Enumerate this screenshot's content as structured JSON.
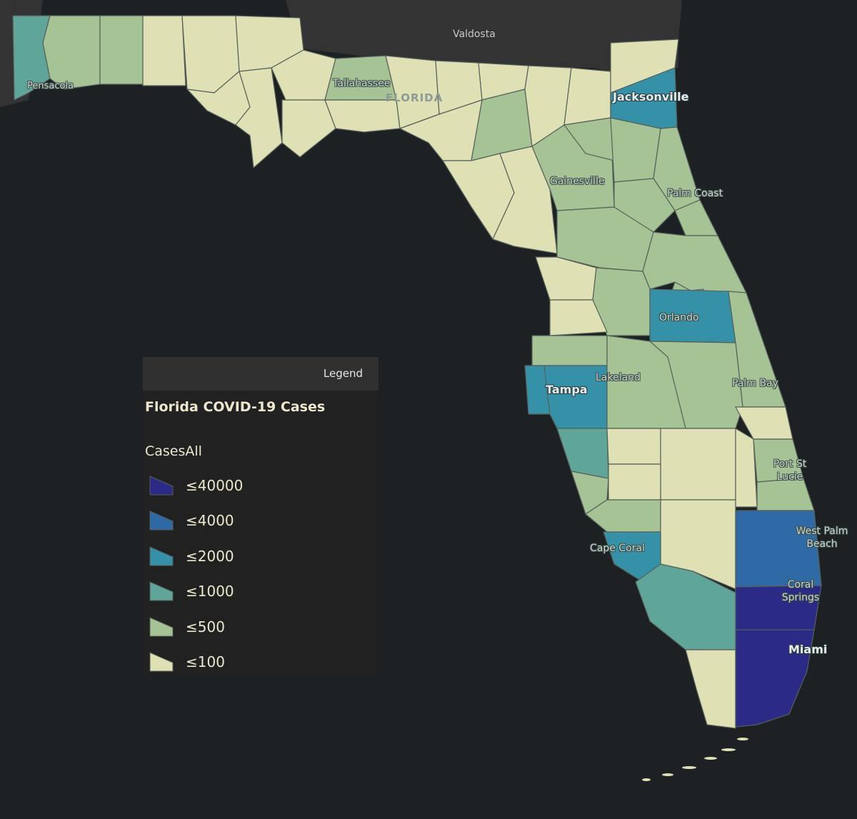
{
  "places": {
    "valdosta": "Valdosta",
    "pensacola": "Pensacola",
    "tallahassee": "Tallahassee",
    "florida": "FLORIDA",
    "jacksonville": "Jacksonville",
    "gainesville": "Gainesville",
    "palm_coast": "Palm Coast",
    "orlando": "Orlando",
    "lakeland": "Lakeland",
    "tampa": "Tampa",
    "palm_bay": "Palm Bay",
    "port_st_lucie_1": "Port St",
    "port_st_lucie_2": "Lucie",
    "west_palm_beach_1": "West Palm",
    "west_palm_beach_2": "Beach",
    "coral_springs_1": "Coral",
    "coral_springs_2": "Springs",
    "cape_coral": "Cape Coral",
    "miami": "Miami"
  },
  "legend": {
    "header": "Legend",
    "layer_title": "Florida COVID-19 Cases",
    "field": "CasesAll",
    "classes": [
      {
        "label": "≤40000",
        "color": "#2b2a87"
      },
      {
        "label": "≤4000",
        "color": "#2f6aa6"
      },
      {
        "label": "≤2000",
        "color": "#3491a8"
      },
      {
        "label": "≤1000",
        "color": "#5fa59a"
      },
      {
        "label": "≤500",
        "color": "#a6c396"
      },
      {
        "label": "≤100",
        "color": "#dfe0b4"
      }
    ]
  },
  "colors": {
    "water": "#1e2124",
    "land_outside": "#333333"
  }
}
